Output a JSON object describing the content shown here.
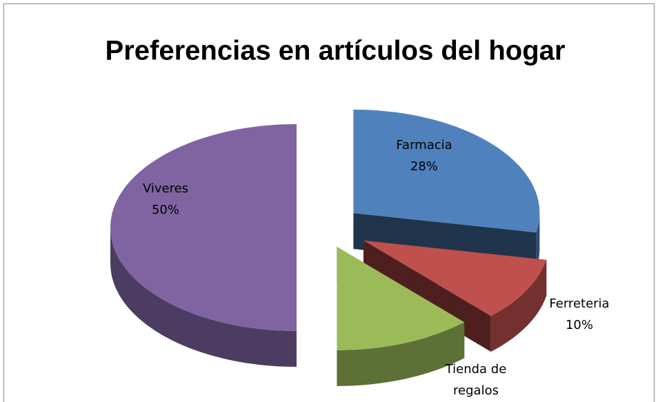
{
  "chart_data": {
    "type": "pie",
    "title": "Preferencias en artículos del hogar",
    "categories": [
      "Farmacia",
      "Ferreteria",
      "Tienda de regalos",
      "Viveres"
    ],
    "values": [
      28,
      10,
      12,
      50
    ],
    "value_labels": [
      "28%",
      "10%",
      null,
      "50%"
    ],
    "colors": [
      "#4f81bd",
      "#c0504d",
      "#9bbb59",
      "#8064a2"
    ]
  }
}
